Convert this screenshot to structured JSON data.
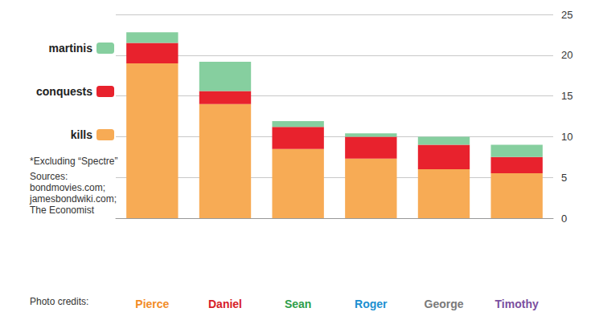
{
  "chart_data": {
    "type": "bar",
    "categories": [
      "Pierce",
      "Daniel",
      "Sean",
      "Roger",
      "George",
      "Timothy"
    ],
    "series": [
      {
        "name": "kills",
        "color": "#f7ab55",
        "values": [
          19,
          14,
          8.5,
          7.3,
          6,
          5.5
        ]
      },
      {
        "name": "conquests",
        "color": "#e8222d",
        "values": [
          2.5,
          1.6,
          2.7,
          2.7,
          3,
          2
        ]
      },
      {
        "name": "martinis",
        "color": "#86cf9f",
        "values": [
          1.3,
          3.6,
          0.7,
          0.4,
          1,
          1.5
        ]
      }
    ],
    "ylim": [
      0,
      25
    ],
    "yticks": [
      0,
      5,
      10,
      15,
      20,
      25
    ],
    "grid": true,
    "stacked": true,
    "legend": "left",
    "footnote": "*Excluding “Spectre”",
    "sources": [
      "Sources:",
      "bondmovies.com;",
      "jamesbondwiki.com;",
      "The Economist"
    ],
    "photo_credits": "Photo credits:"
  }
}
